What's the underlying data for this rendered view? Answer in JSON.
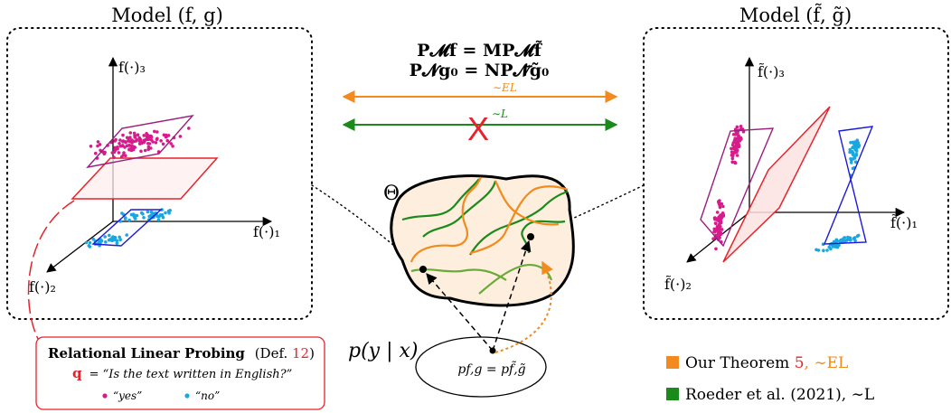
{
  "left_model": {
    "title": "Model (f, g)",
    "axis_x": "f(·)₁",
    "axis_y": "f(·)₂",
    "axis_z": "f(·)₃"
  },
  "right_model": {
    "title": "Model (f̃, g̃)",
    "axis_x": "f̃(·)₁",
    "axis_y": "f̃(·)₂",
    "axis_z": "f̃(·)₃"
  },
  "equations": {
    "line1": "P𝓜f = MP𝓜f̃",
    "line2": "P𝓝g₀ = NP𝓝̃g̃₀"
  },
  "relations": {
    "el_label": "∼EL",
    "l_label": "∼L",
    "cross": "X"
  },
  "theta_label": "Θ",
  "distribution": {
    "py_label": "p(y | x)",
    "ellipse_label": "pf,g = pf̃,g̃"
  },
  "probing_box": {
    "title": "Relational Linear Probing",
    "def_prefix": "(Def. ",
    "def_number": "12",
    "def_suffix": ")",
    "q_symbol": "q",
    "question": "= “Is the text written in English?”",
    "yes": "“yes”",
    "no": "“no”"
  },
  "legend": {
    "theorem_prefix": "Our Theorem ",
    "theorem_number": "5",
    "theorem_rel": ", ∼EL",
    "roeder": "Roeder et al. (2021), ∼L"
  },
  "colors": {
    "orange": "#f28a1e",
    "green": "#1a8a1a",
    "red": "#e8222a",
    "magenta": "#d81b8c",
    "cyan": "#1aa7e0",
    "blue": "#1a1adb",
    "purple": "#9b1e7e"
  }
}
